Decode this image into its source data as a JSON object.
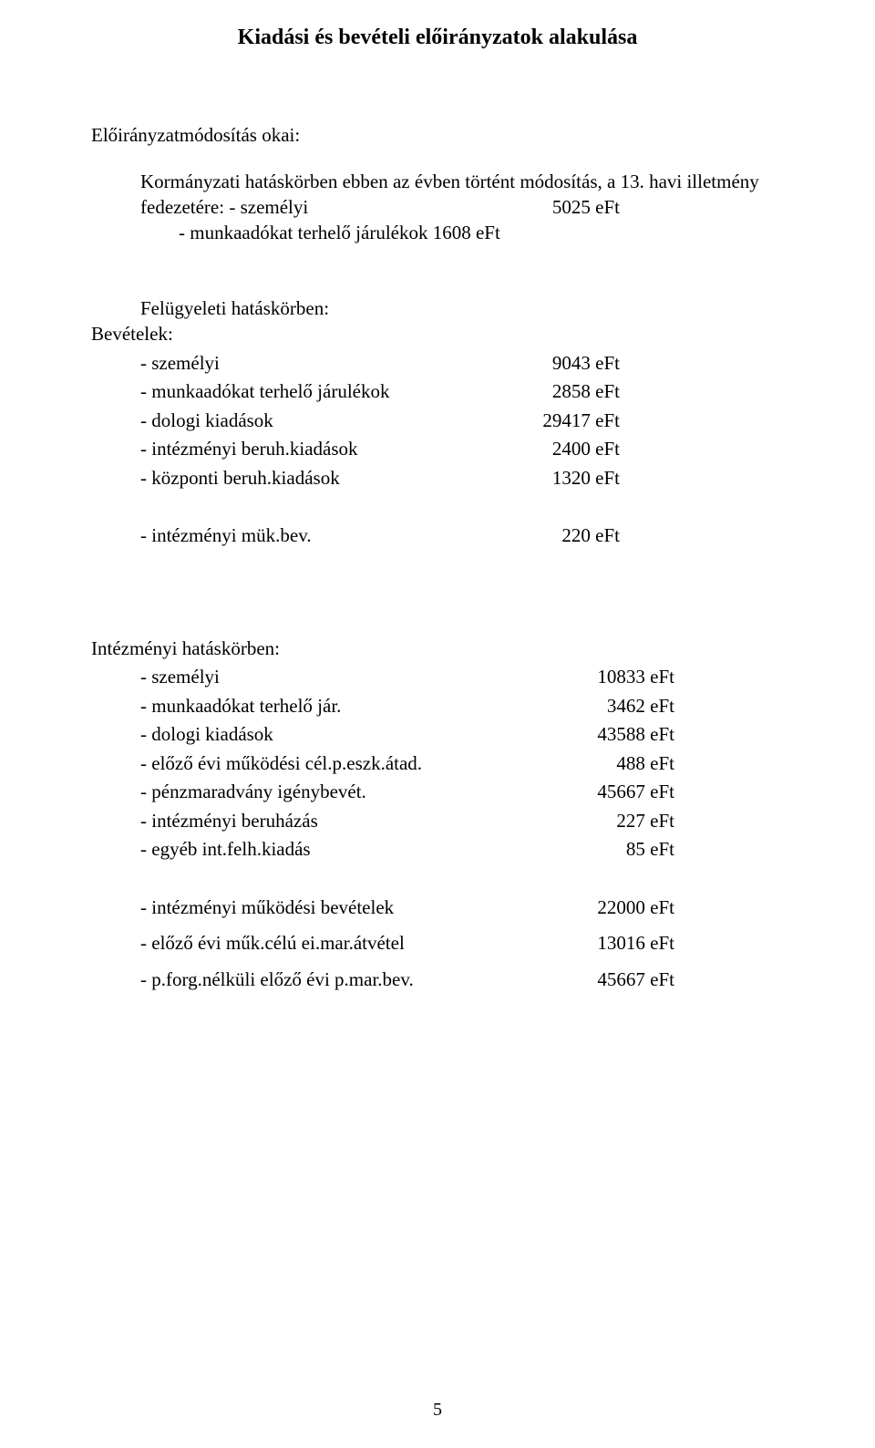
{
  "title": "Kiadási és bevételi előirányzatok alakulása",
  "intro": {
    "heading": "Előirányzatmódosítás okai:",
    "line1": "Kormányzati hatáskörben ebben az évben  történt módosítás, a 13. havi illetmény",
    "line2_label": "fedezetére: - személyi",
    "line2_value": "5025 eFt",
    "line3": "- munkaadókat terhelő járulékok  1608 eFt"
  },
  "supervisory": {
    "heading": "Felügyeleti hatáskörben:",
    "bevetelek": "Bevételek:",
    "rows": [
      {
        "label": "- személyi",
        "value": "9043 eFt"
      },
      {
        "label": "- munkaadókat terhelő járulékok",
        "value": "2858 eFt"
      },
      {
        "label": "- dologi kiadások",
        "value": "29417 eFt"
      },
      {
        "label": "- intézményi beruh.kiadások",
        "value": "2400 eFt"
      },
      {
        "label": "- központi beruh.kiadások",
        "value": "1320  eFt"
      }
    ],
    "extra": {
      "label": "- intézményi mük.bev.",
      "value": "220 eFt"
    }
  },
  "institutional": {
    "heading": "Intézményi hatáskörben:",
    "rows": [
      {
        "label": "- személyi",
        "value": "10833 eFt"
      },
      {
        "label": "- munkaadókat terhelő jár.",
        "value": "3462 eFt"
      },
      {
        "label": "- dologi kiadások",
        "value": "43588 eFt"
      },
      {
        "label": "- előző évi működési cél.p.eszk.átad.",
        "value": "488 eFt"
      },
      {
        "label": "- pénzmaradvány igénybevét.",
        "value": "45667 eFt"
      },
      {
        "label": "- intézményi beruházás",
        "value": "227 eFt"
      },
      {
        "label": "- egyéb int.felh.kiadás",
        "value": "85 eFt"
      }
    ],
    "footer": [
      {
        "label": "- intézményi működési bevételek",
        "value": "22000 eFt"
      },
      {
        "label": "- előző évi műk.célú ei.mar.átvétel",
        "value": "13016 eFt"
      },
      {
        "label": "- p.forg.nélküli előző évi p.mar.bev.",
        "value": "45667 eFt"
      }
    ]
  },
  "page_number": "5"
}
